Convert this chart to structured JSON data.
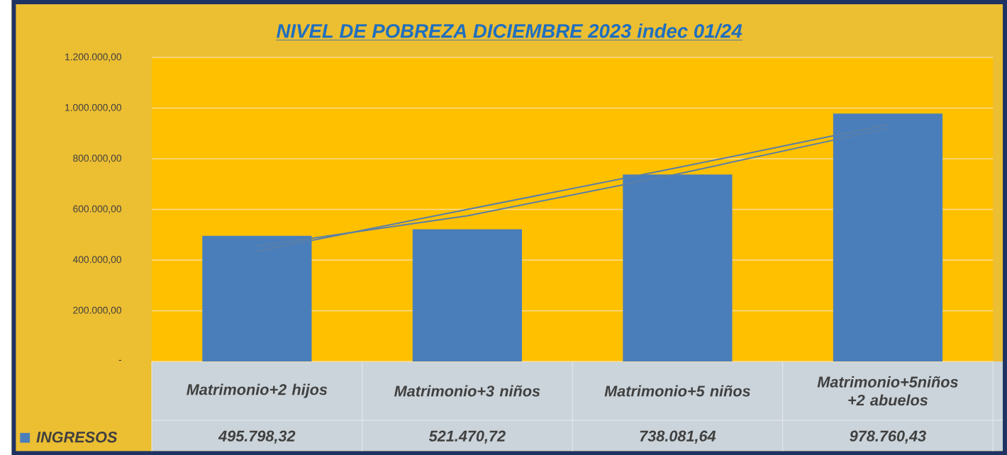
{
  "chart_data": {
    "type": "bar",
    "title": "NIVEL DE POBREZA DICIEMBRE  2023  indec 01/24",
    "categories": [
      "Matrimonio+2 hijos",
      "Matrimonio+3 niños",
      "Matrimonio+5 niños",
      "Matrimonio+5niños +2 abuelos"
    ],
    "series": [
      {
        "name": "INGRESOS",
        "color": "#4a7ebb",
        "values": [
          495798.32,
          521470.72,
          738081.64,
          978760.43
        ],
        "value_labels": [
          "495.798,32",
          "521.470,72",
          "738.081,64",
          "978.760,43"
        ]
      },
      {
        "type": "line",
        "color": "#5a7fa6",
        "values": [
          435000,
          600000,
          765000,
          935000
        ]
      },
      {
        "type": "line",
        "color": "#5a7fa6",
        "values": [
          455000,
          575000,
          740000,
          920000
        ]
      }
    ],
    "ylim": [
      0,
      1200000
    ],
    "yticks": [
      {
        "value": 0,
        "label": "-"
      },
      {
        "value": 200000,
        "label": "200.000,00"
      },
      {
        "value": 400000,
        "label": "400.000,00"
      },
      {
        "value": 600000,
        "label": "600.000,00"
      },
      {
        "value": 800000,
        "label": "800.000,00"
      },
      {
        "value": 1000000,
        "label": "1.000.000,00"
      },
      {
        "value": 1200000,
        "label": "1.200.000,00"
      }
    ],
    "grid": true
  }
}
